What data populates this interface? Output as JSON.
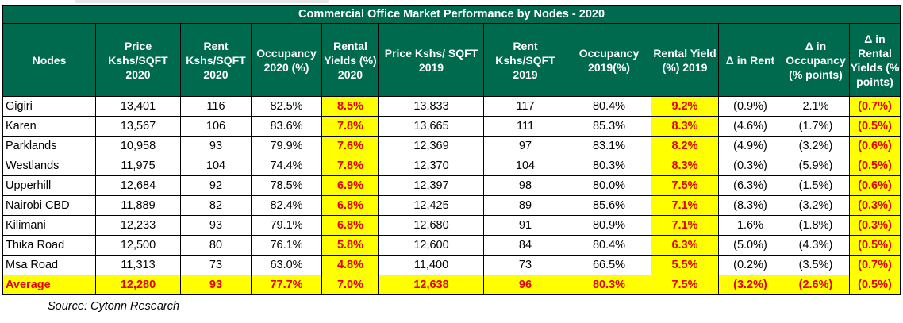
{
  "title": "Commercial Office Market Performance by Nodes - 2020",
  "headers": [
    "Nodes",
    "Price Kshs/SQFT 2020",
    "Rent Kshs/SQFT 2020",
    "Occupancy 2020 (%)",
    "Rental Yields (%) 2020",
    "Price Kshs/ SQFT 2019",
    "Rent Kshs/SQFT 2019",
    "Occupancy 2019(%)",
    "Rental Yield (%) 2019",
    "Δ in Rent",
    "Δ in Occupancy (% points)",
    "Δ in Rental Yields (% points)"
  ],
  "rows": [
    [
      "Gigiri",
      "13,401",
      "116",
      "82.5%",
      "8.5%",
      "13,833",
      "117",
      "80.4%",
      "9.2%",
      "(0.9%)",
      "2.1%",
      "(0.7%)"
    ],
    [
      "Karen",
      "13,567",
      "106",
      "83.6%",
      "7.8%",
      "13,665",
      "111",
      "85.3%",
      "8.3%",
      "(4.6%)",
      "(1.7%)",
      "(0.5%)"
    ],
    [
      "Parklands",
      "10,958",
      "93",
      "79.9%",
      "7.6%",
      "12,369",
      "97",
      "83.1%",
      "8.2%",
      "(4.9%)",
      "(3.2%)",
      "(0.6%)"
    ],
    [
      "Westlands",
      "11,975",
      "104",
      "74.4%",
      "7.8%",
      "12,370",
      "104",
      "80.3%",
      "8.3%",
      "(0.3%)",
      "(5.9%)",
      "(0.5%)"
    ],
    [
      "Upperhill",
      "12,684",
      "92",
      "78.5%",
      "6.9%",
      "12,397",
      "98",
      "80.0%",
      "7.5%",
      "(6.3%)",
      "(1.5%)",
      "(0.6%)"
    ],
    [
      "Nairobi CBD",
      "11,889",
      "82",
      "82.4%",
      "6.8%",
      "12,425",
      "89",
      "85.6%",
      "7.1%",
      "(8.3%)",
      "(3.2%)",
      "(0.3%)"
    ],
    [
      "Kilimani",
      "12,233",
      "93",
      "79.1%",
      "6.8%",
      "12,680",
      "91",
      "80.9%",
      "7.1%",
      "1.6%",
      "(1.8%)",
      "(0.3%)"
    ],
    [
      "Thika Road",
      "12,500",
      "80",
      "76.1%",
      "5.8%",
      "12,600",
      "84",
      "80.4%",
      "6.3%",
      "(5.0%)",
      "(4.3%)",
      "(0.5%)"
    ],
    [
      "Msa Road",
      "11,313",
      "73",
      "63.0%",
      "4.8%",
      "11,400",
      "73",
      "66.5%",
      "5.5%",
      "(0.2%)",
      "(3.5%)",
      "(0.7%)"
    ]
  ],
  "average": [
    "Average",
    "12,280",
    "93",
    "77.7%",
    "7.0%",
    "12,638",
    "96",
    "80.3%",
    "7.5%",
    "(3.2%)",
    "(2.6%)",
    "(0.5%)"
  ],
  "source": "Source: Cytonn Research",
  "colors": {
    "header_bg": "#006a4e",
    "header_text": "#ffffff",
    "highlight_bg": "#ffff00",
    "highlight_text": "#e60000"
  }
}
